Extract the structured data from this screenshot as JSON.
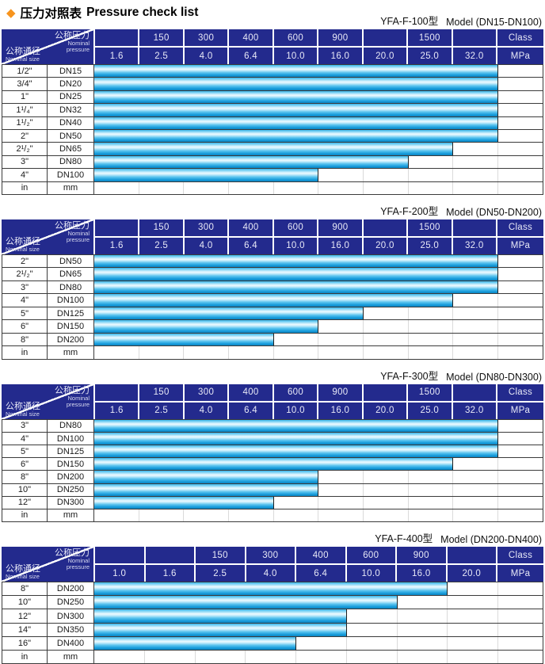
{
  "page": {
    "title": {
      "diamond": "◆",
      "zh": "压力对照表",
      "en": "Pressure check list"
    }
  },
  "header_labels": {
    "pressure_zh": "公称压力",
    "pressure_en_line1": "Nominal",
    "pressure_en_line2": "pressure",
    "size_zh": "公称通径",
    "size_en": "Nominal size",
    "class_unit": "Class",
    "mpa_unit": "MPa"
  },
  "colors": {
    "header_navy": "#232a8d",
    "bar_cyan": "#29abe2",
    "bar_highlight": "#eefaff",
    "diamond_orange": "#f7941d"
  },
  "tables": [
    {
      "model": "YFA-F-100型",
      "range": "Model (DN15-DN100)",
      "class_row": [
        "",
        "150",
        "300",
        "400",
        "600",
        "900",
        "",
        "1500",
        ""
      ],
      "mpa_row": [
        "1.6",
        "2.5",
        "4.0",
        "6.4",
        "10.0",
        "16.0",
        "20.0",
        "25.0",
        "32.0"
      ],
      "rows": [
        {
          "size": "1/2\"",
          "dn": "DN15",
          "bar_end_mpa": "32.0"
        },
        {
          "size": "3/4\"",
          "dn": "DN20",
          "bar_end_mpa": "32.0"
        },
        {
          "size": "1\"",
          "dn": "DN25",
          "bar_end_mpa": "32.0"
        },
        {
          "size": "1¹/₄\"",
          "dn": "DN32",
          "bar_end_mpa": "32.0"
        },
        {
          "size": "1¹/₂\"",
          "dn": "DN40",
          "bar_end_mpa": "32.0"
        },
        {
          "size": "2\"",
          "dn": "DN50",
          "bar_end_mpa": "32.0"
        },
        {
          "size": "2¹/₂\"",
          "dn": "DN65",
          "bar_end_mpa": "25.0"
        },
        {
          "size": "3\"",
          "dn": "DN80",
          "bar_end_mpa": "20.0"
        },
        {
          "size": "4\"",
          "dn": "DN100",
          "bar_end_mpa": "10.0"
        }
      ],
      "unit_row": {
        "size": "in",
        "dn": "mm"
      }
    },
    {
      "model": "YFA-F-200型",
      "range": "Model (DN50-DN200)",
      "class_row": [
        "",
        "150",
        "300",
        "400",
        "600",
        "900",
        "",
        "1500",
        ""
      ],
      "mpa_row": [
        "1.6",
        "2.5",
        "4.0",
        "6.4",
        "10.0",
        "16.0",
        "20.0",
        "25.0",
        "32.0"
      ],
      "rows": [
        {
          "size": "2\"",
          "dn": "DN50",
          "bar_end_mpa": "32.0"
        },
        {
          "size": "2¹/₂\"",
          "dn": "DN65",
          "bar_end_mpa": "32.0"
        },
        {
          "size": "3\"",
          "dn": "DN80",
          "bar_end_mpa": "32.0"
        },
        {
          "size": "4\"",
          "dn": "DN100",
          "bar_end_mpa": "25.0"
        },
        {
          "size": "5\"",
          "dn": "DN125",
          "bar_end_mpa": "16.0"
        },
        {
          "size": "6\"",
          "dn": "DN150",
          "bar_end_mpa": "10.0"
        },
        {
          "size": "8\"",
          "dn": "DN200",
          "bar_end_mpa": "6.4"
        }
      ],
      "unit_row": {
        "size": "in",
        "dn": "mm"
      }
    },
    {
      "model": "YFA-F-300型",
      "range": "Model (DN80-DN300)",
      "class_row": [
        "",
        "150",
        "300",
        "400",
        "600",
        "900",
        "",
        "1500",
        ""
      ],
      "mpa_row": [
        "1.6",
        "2.5",
        "4.0",
        "6.4",
        "10.0",
        "16.0",
        "20.0",
        "25.0",
        "32.0"
      ],
      "rows": [
        {
          "size": "3\"",
          "dn": "DN80",
          "bar_end_mpa": "32.0"
        },
        {
          "size": "4\"",
          "dn": "DN100",
          "bar_end_mpa": "32.0"
        },
        {
          "size": "5\"",
          "dn": "DN125",
          "bar_end_mpa": "32.0"
        },
        {
          "size": "6\"",
          "dn": "DN150",
          "bar_end_mpa": "25.0"
        },
        {
          "size": "8\"",
          "dn": "DN200",
          "bar_end_mpa": "10.0"
        },
        {
          "size": "10\"",
          "dn": "DN250",
          "bar_end_mpa": "10.0"
        },
        {
          "size": "12\"",
          "dn": "DN300",
          "bar_end_mpa": "6.4"
        }
      ],
      "unit_row": {
        "size": "in",
        "dn": "mm"
      }
    },
    {
      "model": "YFA-F-400型",
      "range": "Model (DN200-DN400)",
      "class_row": [
        "",
        "",
        "150",
        "300",
        "400",
        "600",
        "900",
        ""
      ],
      "mpa_row": [
        "1.0",
        "1.6",
        "2.5",
        "4.0",
        "6.4",
        "10.0",
        "16.0",
        "20.0"
      ],
      "rows": [
        {
          "size": "8\"",
          "dn": "DN200",
          "bar_end_mpa": "16.0"
        },
        {
          "size": "10\"",
          "dn": "DN250",
          "bar_end_mpa": "10.0"
        },
        {
          "size": "12\"",
          "dn": "DN300",
          "bar_end_mpa": "6.4"
        },
        {
          "size": "14\"",
          "dn": "DN350",
          "bar_end_mpa": "6.4"
        },
        {
          "size": "16\"",
          "dn": "DN400",
          "bar_end_mpa": "4.0"
        }
      ],
      "unit_row": {
        "size": "in",
        "dn": "mm"
      }
    }
  ]
}
